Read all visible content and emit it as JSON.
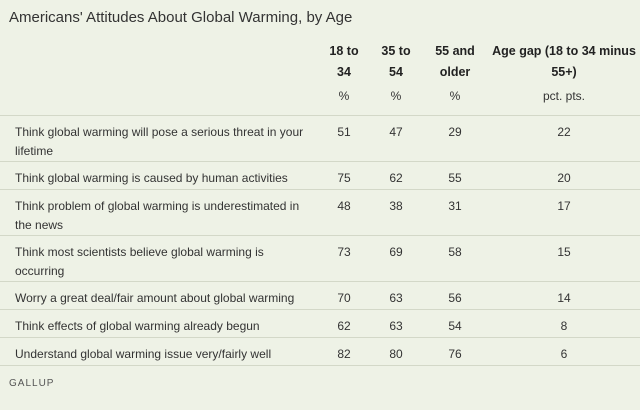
{
  "title": "Americans' Attitudes About Global Warming, by Age",
  "columns": {
    "age_18_34": [
      "18 to",
      "34"
    ],
    "age_35_54": [
      "35 to",
      "54"
    ],
    "age_55_older": [
      "55 and",
      "older"
    ],
    "age_gap": [
      "Age gap (18 to 34 minus",
      "55+)"
    ]
  },
  "units": {
    "age_18_34": "%",
    "age_35_54": "%",
    "age_55_older": "%",
    "age_gap": "pct. pts."
  },
  "rows": [
    {
      "label": "Think global warming will pose a serious threat in your lifetime",
      "a": "51",
      "b": "47",
      "c": "29",
      "gap": "22"
    },
    {
      "label": "Think global warming is caused by human activities",
      "a": "75",
      "b": "62",
      "c": "55",
      "gap": "20"
    },
    {
      "label": "Think problem of global warming is underestimated in the news",
      "a": "48",
      "b": "38",
      "c": "31",
      "gap": "17"
    },
    {
      "label": "Think most scientists believe global warming is occurring",
      "a": "73",
      "b": "69",
      "c": "58",
      "gap": "15"
    },
    {
      "label": "Worry a great deal/fair amount about global warming",
      "a": "70",
      "b": "63",
      "c": "56",
      "gap": "14"
    },
    {
      "label": "Think effects of global warming already begun",
      "a": "62",
      "b": "63",
      "c": "54",
      "gap": "8"
    },
    {
      "label": "Understand global warming issue very/fairly well",
      "a": "82",
      "b": "80",
      "c": "76",
      "gap": "6"
    }
  ],
  "footer": "GALLUP"
}
